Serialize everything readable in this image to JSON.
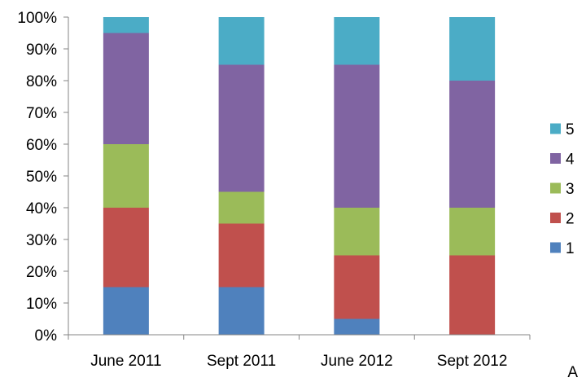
{
  "chart_data": {
    "type": "bar",
    "stacked": true,
    "percent": true,
    "categories": [
      "June 2011",
      "Sept 2011",
      "June 2012",
      "Sept 2012"
    ],
    "series": [
      {
        "name": "1",
        "color": "#4F81BD",
        "values": [
          15,
          15,
          5,
          0
        ]
      },
      {
        "name": "2",
        "color": "#C0504D",
        "values": [
          25,
          20,
          20,
          25
        ]
      },
      {
        "name": "3",
        "color": "#9BBB59",
        "values": [
          20,
          10,
          15,
          15
        ]
      },
      {
        "name": "4",
        "color": "#8064A2",
        "values": [
          35,
          40,
          45,
          40
        ]
      },
      {
        "name": "5",
        "color": "#4BACC6",
        "values": [
          5,
          15,
          15,
          20
        ]
      }
    ],
    "ylim": [
      0,
      100
    ],
    "yticks": [
      "0%",
      "10%",
      "20%",
      "30%",
      "40%",
      "50%",
      "60%",
      "70%",
      "80%",
      "90%",
      "100%"
    ],
    "grid": false,
    "legend_position": "right",
    "legend_order": [
      "5",
      "4",
      "3",
      "2",
      "1"
    ]
  },
  "corner_label": "A"
}
